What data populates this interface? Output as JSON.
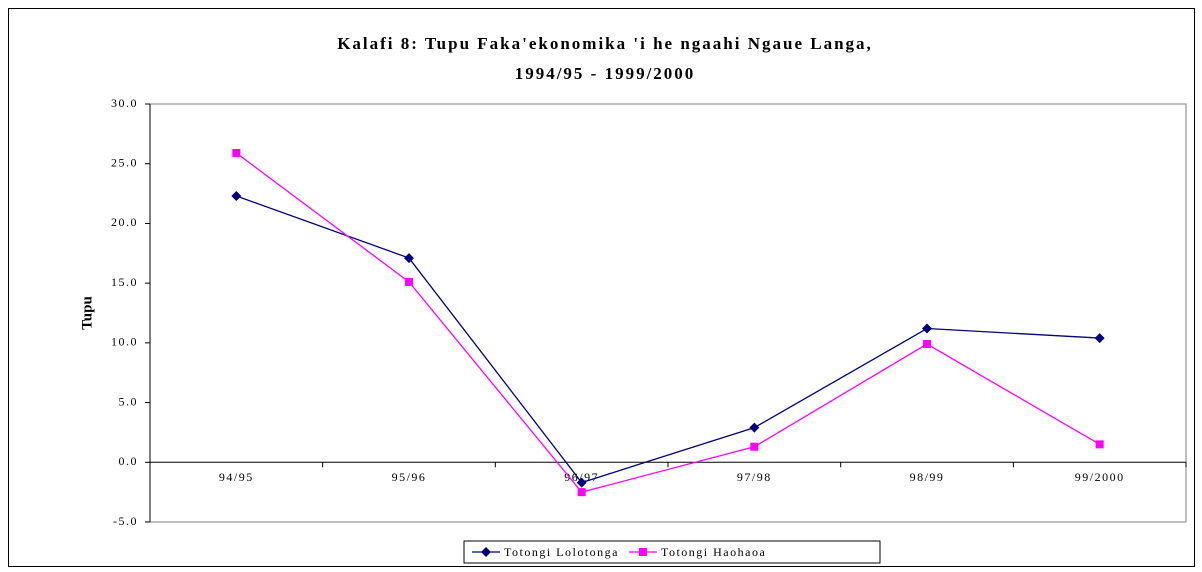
{
  "chart_data": {
    "type": "line",
    "title": [
      "Kalafi 8: Tupu Faka'ekonomika 'i he ngaahi Ngaue Langa,",
      "1994/95 - 1999/2000"
    ],
    "y_label": "Tupu",
    "categories": [
      "94/95",
      "95/96",
      "96/97",
      "97/98",
      "98/99",
      "99/2000"
    ],
    "series": [
      {
        "name": "Totongi Lolotonga",
        "color": "#000080",
        "marker": "diamond",
        "values": [
          22.3,
          17.1,
          -1.7,
          2.9,
          11.2,
          10.4
        ]
      },
      {
        "name": "Totongi Haohaoa",
        "color": "#ff00ff",
        "marker": "square",
        "values": [
          25.9,
          15.1,
          -2.5,
          1.3,
          9.9,
          1.5
        ]
      }
    ],
    "ylim": [
      -5,
      30
    ],
    "yticks": [
      {
        "value": -5,
        "label": "-5.0"
      },
      {
        "value": 0,
        "label": "0.0"
      },
      {
        "value": 5,
        "label": "5.0"
      },
      {
        "value": 10,
        "label": "10.0"
      },
      {
        "value": 15,
        "label": "15.0"
      },
      {
        "value": 20,
        "label": "20.0"
      },
      {
        "value": 25,
        "label": "25.0"
      },
      {
        "value": 30,
        "label": "30.0"
      }
    ],
    "grid": false,
    "legend": "bottom"
  }
}
